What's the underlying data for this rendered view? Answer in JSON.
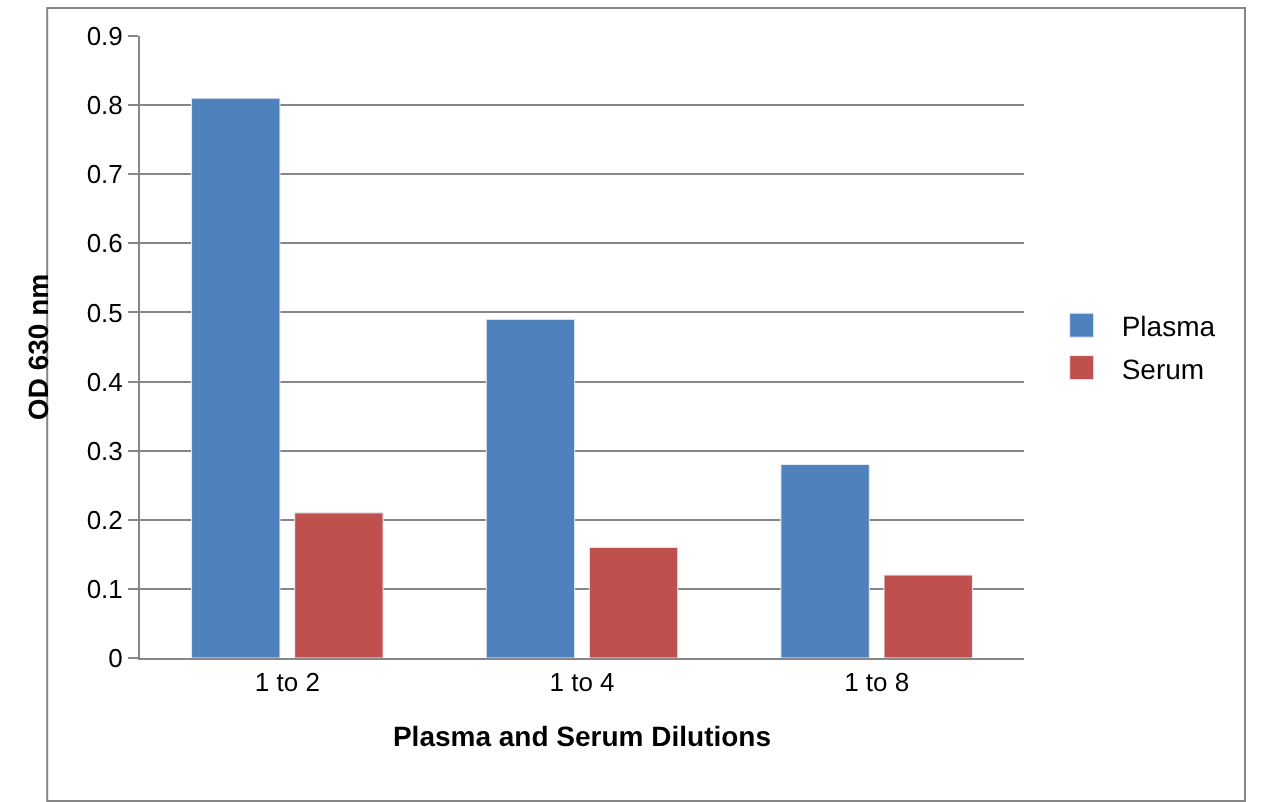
{
  "chart_data": {
    "type": "bar",
    "xlabel": "Plasma and Serum Dilutions",
    "ylabel": "OD 630 nm",
    "categories": [
      "1 to 2",
      "1 to 4",
      "1 to 8"
    ],
    "series": [
      {
        "name": "Plasma",
        "color": "#4f81bd",
        "values": [
          0.81,
          0.49,
          0.28
        ]
      },
      {
        "name": "Serum",
        "color": "#c0504d",
        "values": [
          0.21,
          0.16,
          0.12
        ]
      }
    ],
    "ylim": [
      0,
      0.9
    ],
    "yticks": [
      0,
      0.1,
      0.2,
      0.3,
      0.4,
      0.5,
      0.6,
      0.7,
      0.8,
      0.9
    ],
    "grid": "y",
    "legend": "right"
  }
}
